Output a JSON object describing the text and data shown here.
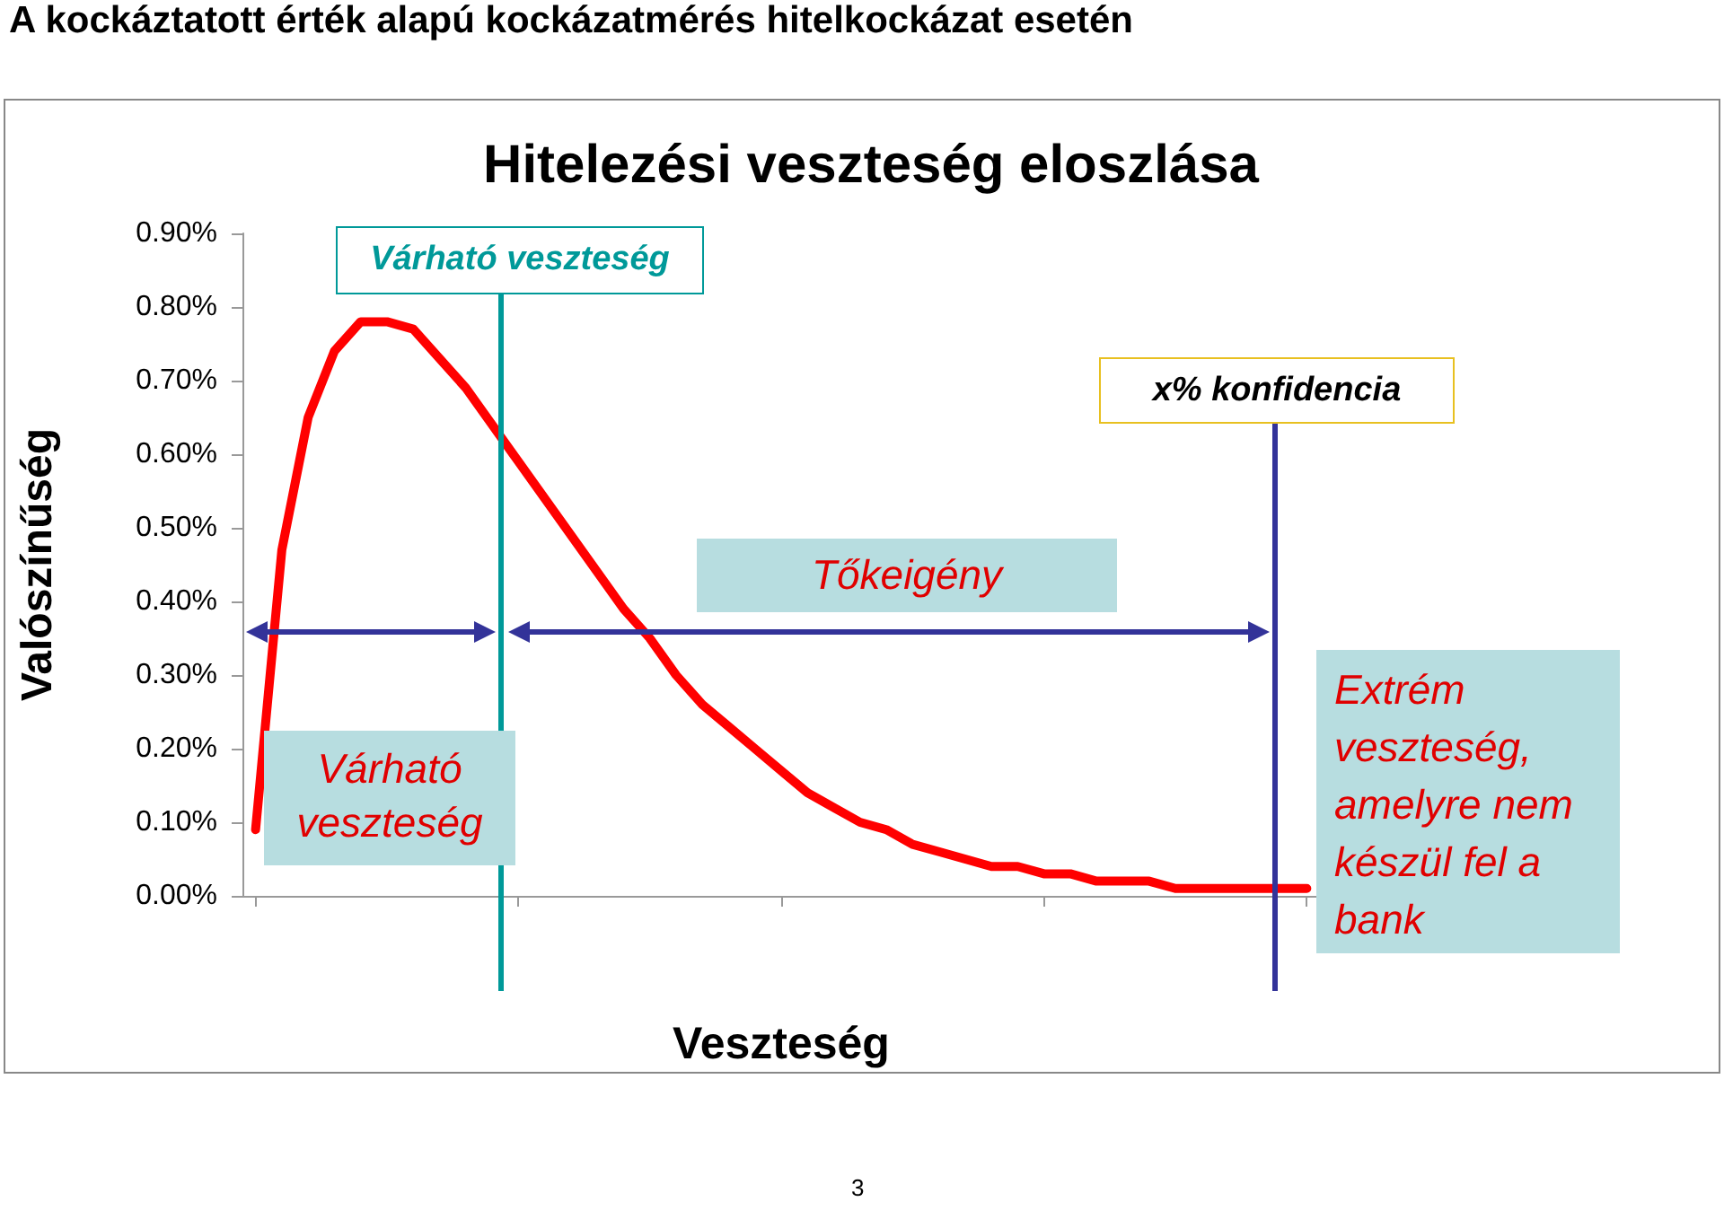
{
  "chart_data": {
    "type": "line",
    "title": "Hitelezési veszteség eloszlása",
    "xlabel": "Veszteség",
    "ylabel": "Valószínűség",
    "categories": [
      null,
      null,
      null,
      null,
      null,
      null,
      null,
      null,
      null,
      null,
      null,
      null,
      null,
      null,
      null,
      null,
      null,
      null,
      null,
      null,
      null,
      null,
      null,
      null,
      null,
      null,
      null,
      null,
      null,
      null,
      null,
      null,
      null,
      null,
      null,
      null,
      null,
      null,
      null,
      null,
      null
    ],
    "series": [
      {
        "color": "#ff0000",
        "values": [
          0.09,
          0.47,
          0.65,
          0.74,
          0.78,
          0.78,
          0.77,
          0.73,
          0.69,
          0.64,
          0.59,
          0.54,
          0.49,
          0.44,
          0.39,
          0.35,
          0.3,
          0.26,
          0.23,
          0.2,
          0.17,
          0.14,
          0.12,
          0.1,
          0.09,
          0.07,
          0.06,
          0.05,
          0.04,
          0.04,
          0.03,
          0.03,
          0.02,
          0.02,
          0.02,
          0.01,
          0.01,
          0.01,
          0.01,
          0.01,
          0.01
        ]
      }
    ],
    "ylim": [
      0,
      0.9
    ],
    "yticks": [
      {
        "value": 0,
        "label": "0.00%"
      },
      {
        "value": 0.1,
        "label": "0.10%"
      },
      {
        "value": 0.2,
        "label": "0.20%"
      },
      {
        "value": 0.3,
        "label": "0.30%"
      },
      {
        "value": 0.4,
        "label": "0.40%"
      },
      {
        "value": 0.5,
        "label": "0.50%"
      },
      {
        "value": 0.6,
        "label": "0.60%"
      },
      {
        "value": 0.7,
        "label": "0.70%"
      },
      {
        "value": 0.8,
        "label": "0.80%"
      },
      {
        "value": 0.9,
        "label": "0.90%"
      }
    ],
    "tick_labels": "y",
    "grid": false,
    "marker": "none",
    "line_style": "solid",
    "annotations": [
      "A kockáztatott érték alapú kockázatmérés hitelkockázat esetén",
      "Várható veszteség",
      "x% konfidencia",
      "Várható veszteség",
      "Tőkeigény",
      "Extrém veszteség, amelyre nem készül fel a bank",
      "3"
    ]
  }
}
